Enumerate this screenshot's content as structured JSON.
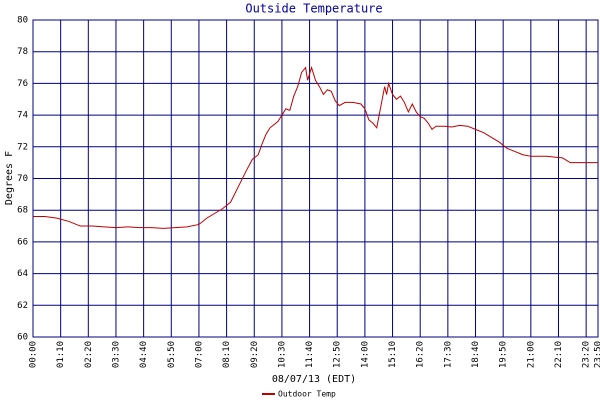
{
  "chart_data": {
    "type": "line",
    "title": "Outside Temperature",
    "ylabel": "Degrees F",
    "xlabel": "08/07/13 (EDT)",
    "x": [
      0,
      30,
      60,
      90,
      120,
      150,
      180,
      210,
      240,
      270,
      300,
      330,
      360,
      390,
      420,
      440,
      460,
      480,
      500,
      520,
      540,
      555,
      570,
      580,
      590,
      600,
      610,
      620,
      630,
      640,
      650,
      660,
      670,
      680,
      690,
      695,
      705,
      715,
      725,
      735,
      745,
      755,
      765,
      775,
      790,
      810,
      830,
      840,
      850,
      860,
      870,
      880,
      890,
      895,
      900,
      910,
      920,
      930,
      940,
      950,
      960,
      970,
      980,
      990,
      1000,
      1010,
      1020,
      1040,
      1060,
      1080,
      1100,
      1120,
      1140,
      1160,
      1180,
      1200,
      1220,
      1240,
      1260,
      1280,
      1300,
      1320,
      1340,
      1360,
      1380,
      1430
    ],
    "series": [
      {
        "name": "Outdoor Temp",
        "color": "#c00000",
        "values": [
          67.6,
          67.6,
          67.5,
          67.3,
          67.0,
          67.0,
          66.95,
          66.9,
          66.95,
          66.9,
          66.9,
          66.85,
          66.9,
          66.95,
          67.1,
          67.5,
          67.8,
          68.1,
          68.5,
          69.5,
          70.5,
          71.2,
          71.5,
          72.2,
          72.8,
          73.2,
          73.4,
          73.6,
          74.0,
          74.4,
          74.3,
          75.2,
          75.8,
          76.7,
          77.0,
          76.2,
          77.0,
          76.2,
          75.8,
          75.3,
          75.6,
          75.5,
          74.9,
          74.6,
          74.8,
          74.8,
          74.7,
          74.4,
          73.7,
          73.5,
          73.2,
          74.5,
          75.8,
          75.3,
          76.0,
          75.3,
          75.0,
          75.2,
          74.8,
          74.2,
          74.7,
          74.2,
          73.9,
          73.8,
          73.5,
          73.1,
          73.3,
          73.3,
          73.25,
          73.35,
          73.3,
          73.1,
          72.9,
          72.6,
          72.3,
          71.9,
          71.7,
          71.5,
          71.4,
          71.4,
          71.4,
          71.35,
          71.3,
          71.0,
          71.0,
          71.0
        ]
      }
    ],
    "xlim": [
      0,
      1430
    ],
    "xticks": [
      {
        "value": 0,
        "label": "00:00"
      },
      {
        "value": 70,
        "label": "01:10"
      },
      {
        "value": 140,
        "label": "02:20"
      },
      {
        "value": 210,
        "label": "03:30"
      },
      {
        "value": 280,
        "label": "04:40"
      },
      {
        "value": 350,
        "label": "05:50"
      },
      {
        "value": 420,
        "label": "07:00"
      },
      {
        "value": 490,
        "label": "08:10"
      },
      {
        "value": 560,
        "label": "09:20"
      },
      {
        "value": 630,
        "label": "10:30"
      },
      {
        "value": 700,
        "label": "11:40"
      },
      {
        "value": 770,
        "label": "12:50"
      },
      {
        "value": 840,
        "label": "14:00"
      },
      {
        "value": 910,
        "label": "15:10"
      },
      {
        "value": 980,
        "label": "16:20"
      },
      {
        "value": 1050,
        "label": "17:30"
      },
      {
        "value": 1120,
        "label": "18:40"
      },
      {
        "value": 1190,
        "label": "19:50"
      },
      {
        "value": 1260,
        "label": "21:00"
      },
      {
        "value": 1330,
        "label": "22:10"
      },
      {
        "value": 1400,
        "label": "23:20"
      },
      {
        "value": 1430,
        "label": "23:50"
      }
    ],
    "ylim": [
      60,
      80
    ],
    "yticks": [
      60,
      62,
      64,
      66,
      68,
      70,
      72,
      74,
      76,
      78,
      80
    ],
    "grid": true,
    "grid_color": "#000080"
  }
}
